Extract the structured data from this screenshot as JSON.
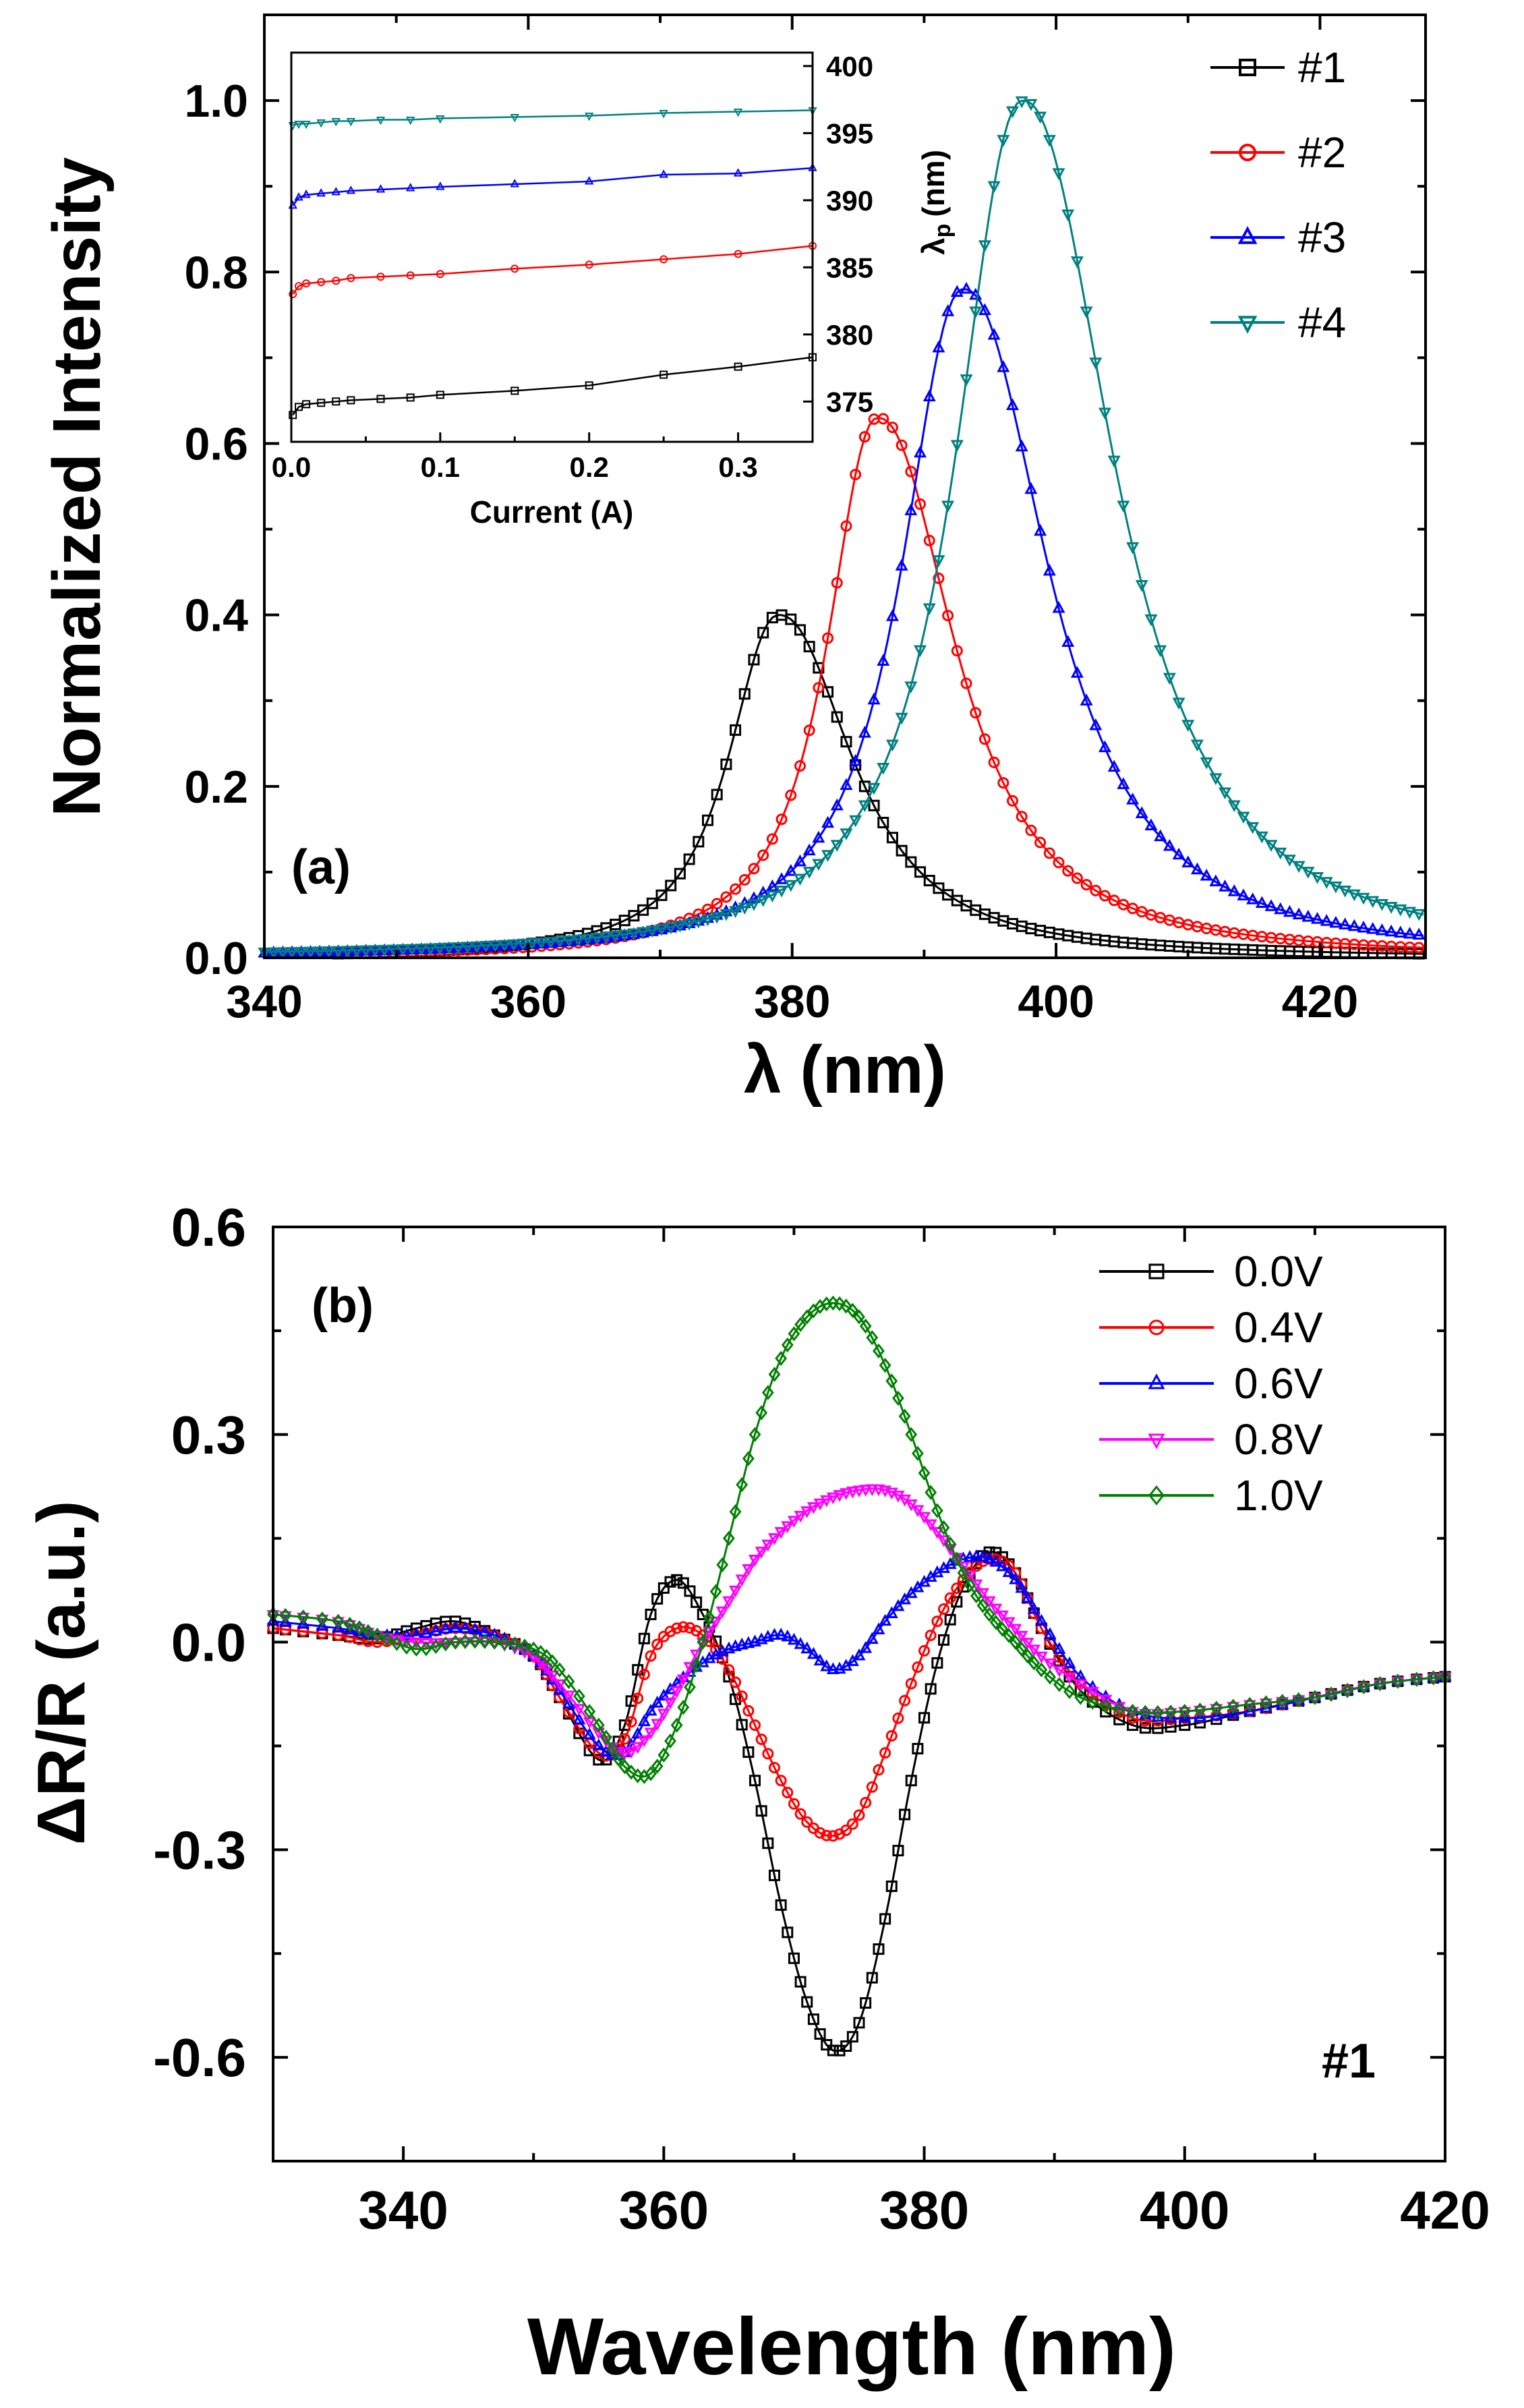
{
  "chart_data": [
    {
      "id": "a",
      "type": "line",
      "panel_label": "(a)",
      "xlabel": "λ (nm)",
      "ylabel": "Normalized Intensity",
      "xlim": [
        340,
        428
      ],
      "ylim": [
        0,
        1.1
      ],
      "xticks": [
        "340",
        "360",
        "380",
        "400",
        "420"
      ],
      "yticks": [
        "0.0",
        "0.2",
        "0.4",
        "0.6",
        "0.8",
        "1.0"
      ],
      "legend_position": "top-right",
      "series": [
        {
          "name": "#1",
          "color": "#000000",
          "marker": "square",
          "peak_x": 379,
          "peak_y": 0.4,
          "width_left": 4.5,
          "width_right": 6.5
        },
        {
          "name": "#2",
          "color": "#ff0000",
          "marker": "circle",
          "peak_x": 386.5,
          "peak_y": 0.63,
          "width_left": 4.5,
          "width_right": 6.8
        },
        {
          "name": "#3",
          "color": "#0000ff",
          "marker": "triangle-up",
          "peak_x": 393,
          "peak_y": 0.78,
          "width_left": 5.5,
          "width_right": 7.5
        },
        {
          "name": "#4",
          "color": "#008080",
          "marker": "triangle-down",
          "peak_x": 397.5,
          "peak_y": 1.0,
          "width_left": 6.0,
          "width_right": 8.0
        }
      ],
      "inset": {
        "type": "line",
        "xlabel": "Current (A)",
        "ylabel": "λp (nm)",
        "ylabel_main": "λ",
        "ylabel_sub": "p",
        "ylabel_unit": "(nm)",
        "xlim": [
          0,
          0.35
        ],
        "ylim": [
          372,
          401
        ],
        "xticks": [
          "0.0",
          "0.1",
          "0.2",
          "0.3"
        ],
        "yticks": [
          "375",
          "380",
          "385",
          "390",
          "395",
          "400"
        ],
        "series": [
          {
            "name": "#1",
            "color": "#000000",
            "marker": "square",
            "x": [
              0.001,
              0.005,
              0.01,
              0.02,
              0.03,
              0.04,
              0.06,
              0.08,
              0.1,
              0.15,
              0.2,
              0.25,
              0.3,
              0.35
            ],
            "y": [
              374.0,
              374.6,
              374.8,
              374.9,
              375.0,
              375.1,
              375.2,
              375.3,
              375.5,
              375.8,
              376.2,
              377.0,
              377.6,
              378.3
            ]
          },
          {
            "name": "#2",
            "color": "#ff0000",
            "marker": "circle",
            "x": [
              0.001,
              0.005,
              0.01,
              0.02,
              0.03,
              0.04,
              0.06,
              0.08,
              0.1,
              0.15,
              0.2,
              0.25,
              0.3,
              0.35
            ],
            "y": [
              383.0,
              383.6,
              383.8,
              383.9,
              384.0,
              384.2,
              384.3,
              384.4,
              384.5,
              384.9,
              385.2,
              385.6,
              386.0,
              386.6
            ]
          },
          {
            "name": "#3",
            "color": "#0000ff",
            "marker": "triangle-up",
            "x": [
              0.001,
              0.005,
              0.01,
              0.02,
              0.03,
              0.04,
              0.06,
              0.08,
              0.1,
              0.15,
              0.2,
              0.25,
              0.3,
              0.35
            ],
            "y": [
              389.6,
              390.2,
              390.4,
              390.5,
              390.6,
              390.7,
              390.8,
              390.9,
              391.0,
              391.2,
              391.4,
              391.9,
              392.0,
              392.4
            ]
          },
          {
            "name": "#4",
            "color": "#008080",
            "marker": "triangle-down",
            "x": [
              0.001,
              0.005,
              0.01,
              0.02,
              0.03,
              0.04,
              0.06,
              0.08,
              0.1,
              0.15,
              0.2,
              0.25,
              0.3,
              0.35
            ],
            "y": [
              395.6,
              395.7,
              395.7,
              395.8,
              395.9,
              395.9,
              396.0,
              396.0,
              396.1,
              396.2,
              396.3,
              396.5,
              396.6,
              396.7
            ]
          }
        ]
      }
    },
    {
      "id": "b",
      "type": "line",
      "panel_label": "(b)",
      "annotation": "#1",
      "xlabel": "Wavelength (nm)",
      "ylabel": "ΔR/R (a.u.)",
      "xlim": [
        330,
        420
      ],
      "ylim": [
        -0.75,
        0.6
      ],
      "xticks": [
        "340",
        "360",
        "380",
        "400",
        "420"
      ],
      "yticks": [
        "0.6",
        "0.3",
        "0.0",
        "-0.3",
        "-0.6"
      ],
      "legend_position": "top-right",
      "series": [
        {
          "name": "0.0V",
          "color": "#000000",
          "marker": "square",
          "x": [
            330,
            335,
            338,
            341,
            344,
            347,
            350,
            352,
            355,
            357,
            359,
            361,
            363,
            365,
            367,
            369,
            371,
            373,
            375,
            377,
            379,
            381,
            383,
            385,
            387,
            389,
            392,
            396,
            400,
            405,
            410,
            415,
            420
          ],
          "y": [
            0.02,
            0.01,
            0.005,
            0.02,
            0.03,
            0.01,
            -0.02,
            -0.08,
            -0.17,
            -0.12,
            0.04,
            0.09,
            0.04,
            -0.05,
            -0.2,
            -0.38,
            -0.52,
            -0.59,
            -0.55,
            -0.4,
            -0.2,
            -0.03,
            0.08,
            0.13,
            0.1,
            0.02,
            -0.07,
            -0.12,
            -0.12,
            -0.1,
            -0.08,
            -0.06,
            -0.05
          ]
        },
        {
          "name": "0.4V",
          "color": "#ff0000",
          "marker": "circle",
          "x": [
            330,
            335,
            338,
            341,
            344,
            347,
            350,
            352,
            355,
            357,
            359,
            361,
            363,
            365,
            367,
            369,
            371,
            373,
            375,
            377,
            379,
            381,
            383,
            385,
            387,
            389,
            392,
            396,
            400,
            405,
            410,
            415,
            420
          ],
          "y": [
            0.02,
            0.01,
            0.0,
            0.01,
            0.02,
            0.01,
            -0.02,
            -0.08,
            -0.16,
            -0.14,
            -0.02,
            0.02,
            0.01,
            -0.04,
            -0.12,
            -0.2,
            -0.26,
            -0.28,
            -0.25,
            -0.16,
            -0.06,
            0.03,
            0.09,
            0.12,
            0.1,
            0.02,
            -0.06,
            -0.11,
            -0.11,
            -0.1,
            -0.08,
            -0.06,
            -0.05
          ]
        },
        {
          "name": "0.6V",
          "color": "#0000ff",
          "marker": "triangle-up",
          "x": [
            330,
            335,
            338,
            341,
            344,
            347,
            350,
            352,
            355,
            357,
            359,
            361,
            363,
            365,
            367,
            369,
            371,
            373,
            375,
            377,
            379,
            381,
            383,
            385,
            387,
            389,
            392,
            396,
            400,
            405,
            410,
            415,
            420
          ],
          "y": [
            0.03,
            0.02,
            0.01,
            0.01,
            0.02,
            0.01,
            -0.02,
            -0.07,
            -0.15,
            -0.16,
            -0.1,
            -0.06,
            -0.03,
            -0.01,
            0.0,
            0.01,
            -0.01,
            -0.04,
            -0.02,
            0.03,
            0.07,
            0.1,
            0.12,
            0.12,
            0.09,
            0.03,
            -0.05,
            -0.1,
            -0.11,
            -0.1,
            -0.08,
            -0.06,
            -0.05
          ]
        },
        {
          "name": "0.8V",
          "color": "#ff00ff",
          "marker": "triangle-down",
          "x": [
            330,
            335,
            338,
            341,
            344,
            347,
            350,
            352,
            355,
            357,
            359,
            361,
            363,
            365,
            367,
            369,
            371,
            373,
            375,
            377,
            379,
            381,
            383,
            385,
            387,
            389,
            392,
            396,
            400,
            405,
            410,
            415,
            420
          ],
          "y": [
            0.04,
            0.03,
            0.01,
            0.0,
            0.0,
            0.0,
            -0.02,
            -0.06,
            -0.13,
            -0.16,
            -0.13,
            -0.07,
            0.0,
            0.06,
            0.12,
            0.16,
            0.19,
            0.21,
            0.22,
            0.22,
            0.2,
            0.16,
            0.11,
            0.06,
            0.02,
            -0.02,
            -0.06,
            -0.1,
            -0.1,
            -0.09,
            -0.08,
            -0.06,
            -0.05
          ]
        },
        {
          "name": "1.0V",
          "color": "#008000",
          "marker": "diamond",
          "x": [
            330,
            335,
            338,
            341,
            344,
            347,
            350,
            352,
            355,
            357,
            359,
            361,
            363,
            365,
            367,
            369,
            371,
            373,
            375,
            377,
            379,
            381,
            383,
            385,
            387,
            389,
            392,
            396,
            400,
            405,
            410,
            415,
            420
          ],
          "y": [
            0.04,
            0.03,
            0.01,
            -0.01,
            0.0,
            0.0,
            -0.01,
            -0.04,
            -0.12,
            -0.18,
            -0.19,
            -0.12,
            0.0,
            0.15,
            0.3,
            0.41,
            0.47,
            0.49,
            0.47,
            0.4,
            0.3,
            0.19,
            0.1,
            0.04,
            0.0,
            -0.04,
            -0.08,
            -0.1,
            -0.1,
            -0.09,
            -0.08,
            -0.06,
            -0.05
          ]
        }
      ]
    }
  ]
}
